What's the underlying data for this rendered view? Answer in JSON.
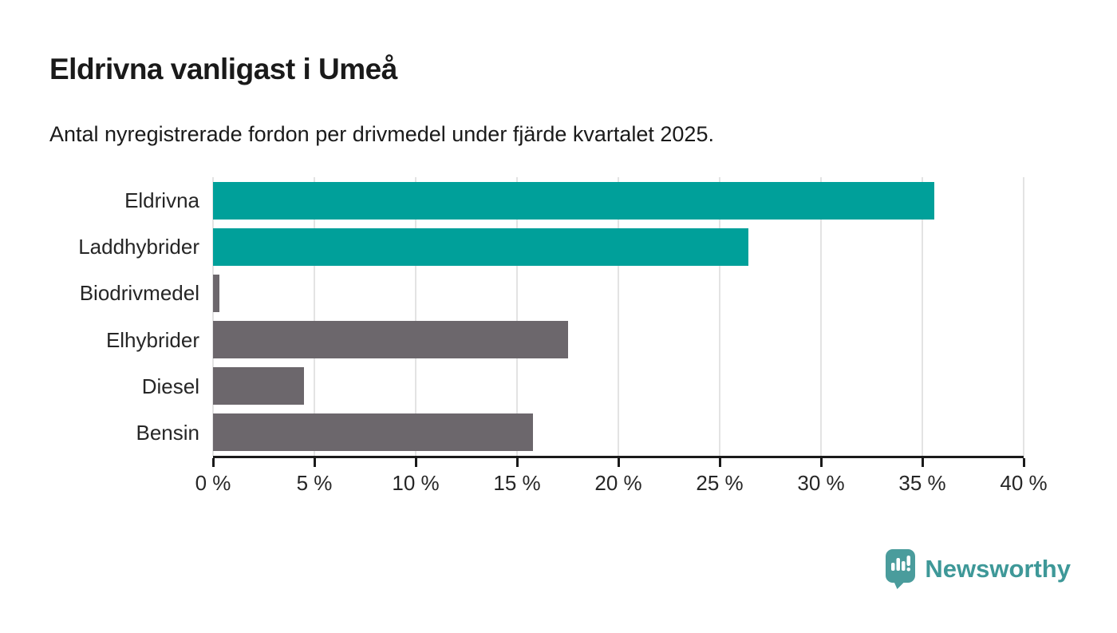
{
  "header": {
    "title": "Eldrivna vanligast i Umeå",
    "subtitle": "Antal nyregistrerade fordon per drivmedel under fjärde kvartalet 2025."
  },
  "chart_data": {
    "type": "bar",
    "orientation": "horizontal",
    "title": "Eldrivna vanligast i Umeå",
    "subtitle": "Antal nyregistrerade fordon per drivmedel under fjärde kvartalet 2025.",
    "categories": [
      "Eldrivna",
      "Laddhybrider",
      "Biodrivmedel",
      "Elhybrider",
      "Diesel",
      "Bensin"
    ],
    "values": [
      35.6,
      26.4,
      0.3,
      17.5,
      4.5,
      15.8
    ],
    "unit": "%",
    "bar_colors": [
      "#00a09a",
      "#00a09a",
      "#6c676c",
      "#6c676c",
      "#6c676c",
      "#6c676c"
    ],
    "xlim": [
      0,
      40
    ],
    "x_ticks": [
      0,
      5,
      10,
      15,
      20,
      25,
      30,
      35,
      40
    ],
    "x_tick_labels": [
      "0 %",
      "5 %",
      "10 %",
      "15 %",
      "20 %",
      "25 %",
      "30 %",
      "35 %",
      "40 %"
    ],
    "grid": true,
    "legend": false,
    "xlabel": "",
    "ylabel": ""
  },
  "footer": {
    "brand": "Newsworthy"
  },
  "colors": {
    "accent_teal": "#00a09a",
    "neutral_gray": "#6c676c",
    "axis": "#1a1a1a",
    "gridline": "#e3e3e3",
    "brand_teal": "#3e9898",
    "background": "#ffffff"
  }
}
